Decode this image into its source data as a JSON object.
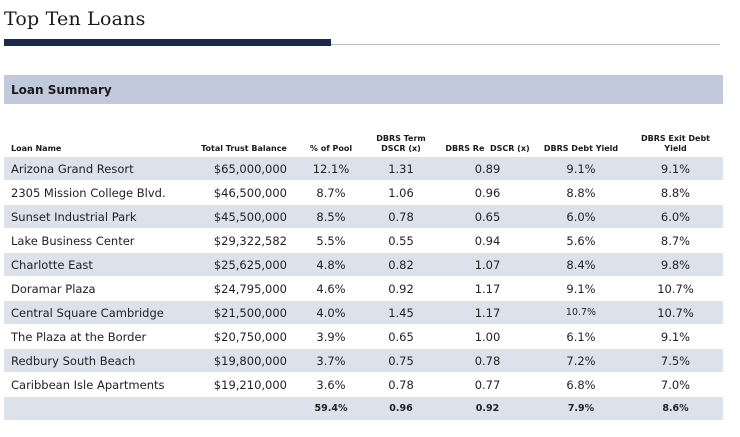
{
  "page": {
    "title": "Top Ten Loans"
  },
  "section": {
    "title": "Loan Summary"
  },
  "table": {
    "headers": [
      "Loan Name",
      "Total Trust Balance",
      "% of Pool",
      "DBRS Term DSCR (x)",
      "DBRS Re  DSCR (x)",
      "DBRS Debt Yield",
      "DBRS Exit Debt Yield"
    ],
    "rows": [
      [
        "Arizona Grand Resort",
        "$65,000,000",
        "12.1%",
        "1.31",
        "0.89",
        "9.1%",
        "9.1%"
      ],
      [
        "2305 Mission College Blvd.",
        "$46,500,000",
        "8.7%",
        "1.06",
        "0.96",
        "8.8%",
        "8.8%"
      ],
      [
        "Sunset Industrial Park",
        "$45,500,000",
        "8.5%",
        "0.78",
        "0.65",
        "6.0%",
        "6.0%"
      ],
      [
        "Lake Business Center",
        "$29,322,582",
        "5.5%",
        "0.55",
        "0.94",
        "5.6%",
        "8.7%"
      ],
      [
        "Charlotte East",
        "$25,625,000",
        "4.8%",
        "0.82",
        "1.07",
        "8.4%",
        "9.8%"
      ],
      [
        "Doramar Plaza",
        "$24,795,000",
        "4.6%",
        "0.92",
        "1.17",
        "9.1%",
        "10.7%"
      ],
      [
        "Central Square Cambridge",
        "$21,500,000",
        "4.0%",
        "1.45",
        "1.17",
        "10.7%",
        "10.7%"
      ],
      [
        "The Plaza at the Border",
        "$20,750,000",
        "3.9%",
        "0.65",
        "1.00",
        "6.1%",
        "9.1%"
      ],
      [
        "Redbury South Beach",
        "$19,800,000",
        "3.7%",
        "0.75",
        "0.78",
        "7.2%",
        "7.5%"
      ],
      [
        "Caribbean Isle Apartments",
        "$19,210,000",
        "3.6%",
        "0.78",
        "0.77",
        "6.8%",
        "7.0%"
      ]
    ],
    "totals": [
      "",
      "",
      "59.4%",
      "0.96",
      "0.92",
      "7.9%",
      "8.6%"
    ]
  }
}
